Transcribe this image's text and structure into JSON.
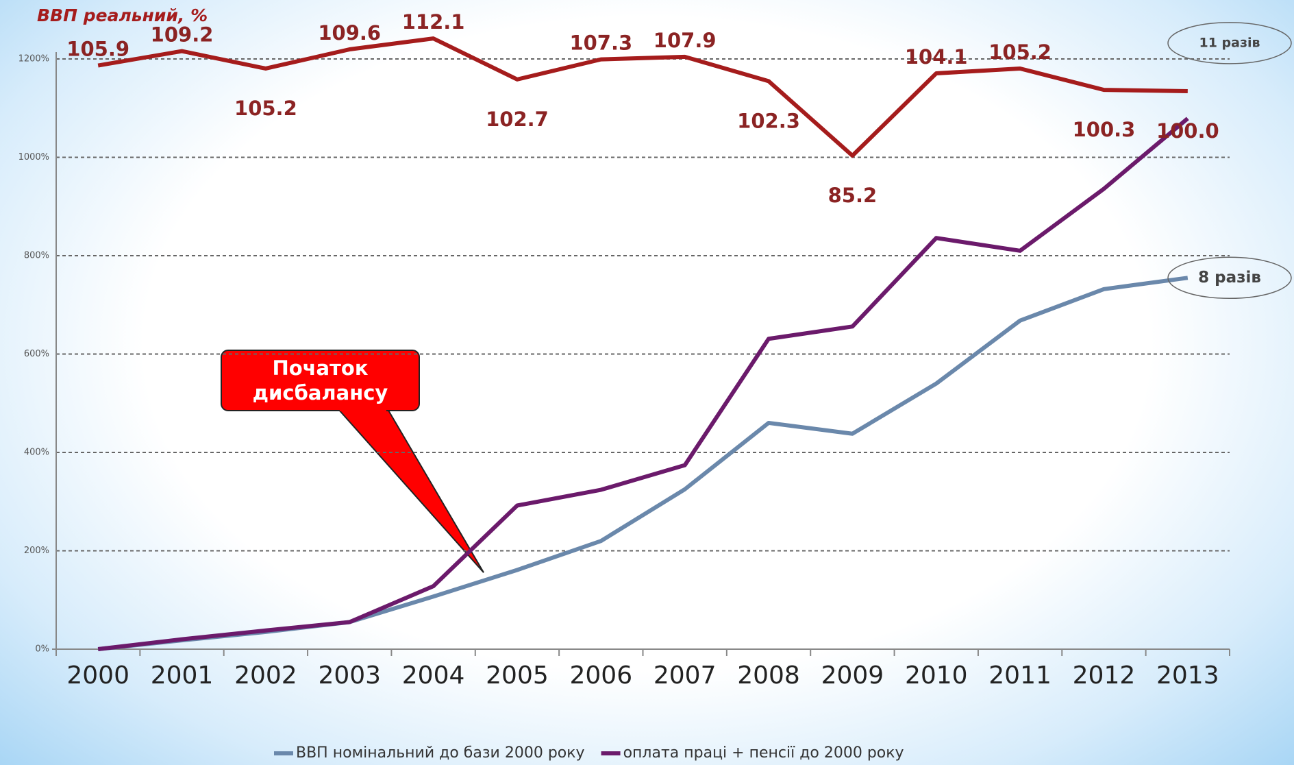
{
  "chart_data": {
    "type": "line",
    "title": "ВВП реальний, %",
    "categories": [
      "2000",
      "2001",
      "2002",
      "2003",
      "2004",
      "2005",
      "2006",
      "2007",
      "2008",
      "2009",
      "2010",
      "2011",
      "2012",
      "2013"
    ],
    "ylim": [
      0,
      1200
    ],
    "yticks": [
      {
        "value": 0,
        "label": "0%"
      },
      {
        "value": 200,
        "label": "200%"
      },
      {
        "value": 400,
        "label": "400%"
      },
      {
        "value": 600,
        "label": "600%"
      },
      {
        "value": 800,
        "label": "800%"
      },
      {
        "value": 1000,
        "label": "1000%"
      },
      {
        "value": 1200,
        "label": "1200%"
      }
    ],
    "y2lim": [
      -28.1,
      107.4
    ],
    "grid": true,
    "legend": "bottom",
    "series": [
      {
        "name": "ВВП номінальний до бази 2000 року",
        "color": "#6a88ab",
        "values": [
          0,
          18,
          35,
          55,
          107,
          161,
          220,
          325,
          460,
          438,
          540,
          668,
          732,
          755
        ]
      },
      {
        "name": "оплата праці + пенсії до 2000 року",
        "color": "#6b1a6b",
        "values": [
          0,
          20,
          38,
          55,
          128,
          292,
          324,
          374,
          631,
          656,
          836,
          810,
          936,
          1079
        ]
      },
      {
        "color": "#a51c1c",
        "axis": "y2",
        "values": [
          105.9,
          109.2,
          105.2,
          109.6,
          112.1,
          102.7,
          107.3,
          107.9,
          102.3,
          85.2,
          104.1,
          105.2,
          100.3,
          100
        ],
        "value_labels": [
          "105.9",
          "109.2",
          "105.2",
          "109.6",
          "112.1",
          "102.7",
          "107.3",
          "107.9",
          "102.3",
          "85.2",
          "104.1",
          "105.2",
          "100.3",
          "100.0"
        ]
      }
    ],
    "annotations": [
      {
        "text": "Початок дисбалансу",
        "category": 4
      },
      {
        "text": "11 разів",
        "series": 1
      },
      {
        "text": "8 разів",
        "series": 0
      }
    ]
  }
}
